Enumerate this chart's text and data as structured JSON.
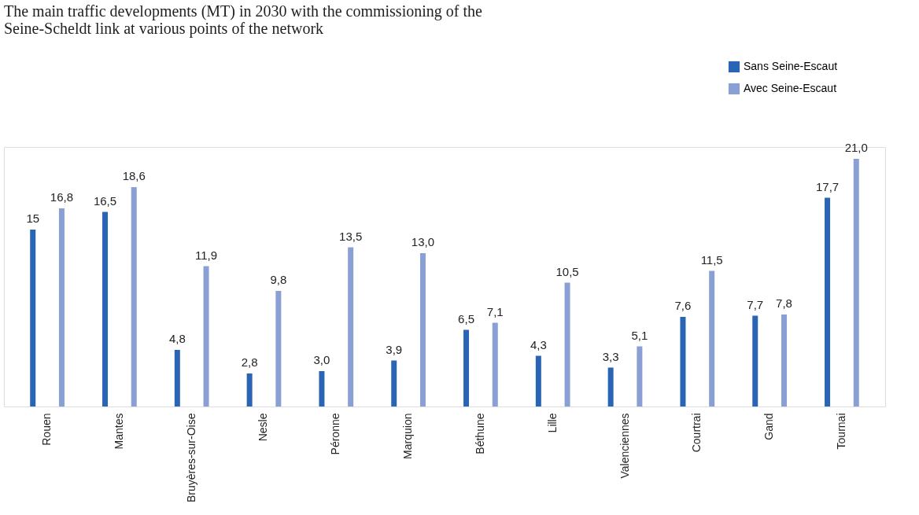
{
  "chart_data": {
    "type": "bar",
    "title": [
      "The main traffic developments (MT) in 2030 with the commissioning of the",
      "Seine-Scheldt link at various points of the network"
    ],
    "categories": [
      "Rouen",
      "Mantes",
      "Bruyères-sur-Oise",
      "Nesle",
      "Péronne",
      "Marquion",
      "Béthune",
      "Lille",
      "Valenciennes",
      "Courtrai",
      "Gand",
      "Tournai"
    ],
    "series": [
      {
        "name": "Sans Seine-Escaut",
        "color": "#2a64b4",
        "values": [
          15,
          16.5,
          4.8,
          2.8,
          3.0,
          3.9,
          6.5,
          4.3,
          3.3,
          7.6,
          7.7,
          17.7
        ],
        "value_labels": [
          "15",
          "16,5",
          "4,8",
          "2,8",
          "3,0",
          "3,9",
          "6,5",
          "4,3",
          "3,3",
          "7,6",
          "7,7",
          "17,7"
        ]
      },
      {
        "name": "Avec Seine-Escaut",
        "color": "#8a9fd4",
        "values": [
          16.8,
          18.6,
          11.9,
          9.8,
          13.5,
          13.0,
          7.1,
          10.5,
          5.1,
          11.5,
          7.8,
          21.0
        ],
        "value_labels": [
          "16,8",
          "18,6",
          "11,9",
          "9,8",
          "13,5",
          "13,0",
          "7,1",
          "10,5",
          "5,1",
          "11,5",
          "7,8",
          "21,0"
        ]
      }
    ],
    "legend": "top right",
    "grid": false,
    "tick_labels": "x"
  }
}
